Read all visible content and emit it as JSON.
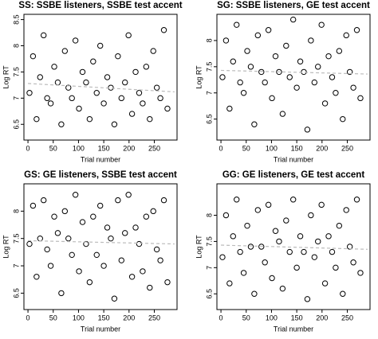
{
  "chart_data": [
    {
      "type": "scatter",
      "title": "SS: SSBE listeners, SSBE test accent",
      "x_label": "Trial number",
      "y_label": "Log RT",
      "xlim": [
        -8,
        295
      ],
      "ylim": [
        6.2,
        8.6
      ],
      "xticks": [
        0,
        50,
        100,
        150,
        200,
        250
      ],
      "yticks": [
        6.5,
        7,
        7.5,
        8,
        8.5
      ],
      "points": {
        "x": [
          3,
          10,
          17,
          24,
          31,
          38,
          45,
          52,
          59,
          66,
          73,
          80,
          87,
          94,
          101,
          108,
          115,
          122,
          129,
          136,
          143,
          150,
          157,
          164,
          171,
          178,
          185,
          192,
          199,
          206,
          213,
          220,
          227,
          234,
          241,
          248,
          255,
          262,
          269,
          276
        ],
        "y": [
          7.1,
          7.8,
          6.6,
          7.4,
          8.2,
          7.0,
          6.9,
          7.6,
          7.3,
          6.5,
          7.9,
          7.2,
          7.0,
          8.1,
          6.8,
          7.5,
          7.3,
          6.6,
          7.7,
          7.1,
          8.0,
          6.9,
          7.4,
          7.2,
          6.5,
          7.8,
          7.0,
          7.3,
          8.2,
          6.7,
          7.5,
          7.1,
          6.9,
          7.6,
          6.6,
          7.9,
          7.2,
          7.0,
          8.3,
          6.8
        ]
      },
      "trend": {
        "x": [
          0,
          290
        ],
        "y": [
          7.28,
          7.12
        ]
      }
    },
    {
      "type": "scatter",
      "title": "SG: SSBE listeners, GE test accent",
      "x_label": "Trial number",
      "y_label": "Log RT",
      "xlim": [
        -8,
        295
      ],
      "ylim": [
        6.1,
        8.5
      ],
      "xticks": [
        0,
        50,
        100,
        150,
        200,
        250
      ],
      "yticks": [
        6.5,
        7,
        7.5,
        8
      ],
      "points": {
        "x": [
          3,
          10,
          17,
          24,
          31,
          38,
          45,
          52,
          59,
          66,
          73,
          80,
          87,
          94,
          101,
          108,
          115,
          122,
          129,
          136,
          143,
          150,
          157,
          164,
          171,
          178,
          185,
          192,
          199,
          206,
          213,
          220,
          227,
          234,
          241,
          248,
          255,
          262,
          269,
          276
        ],
        "y": [
          7.3,
          8.0,
          6.7,
          7.6,
          8.3,
          7.2,
          7.0,
          7.8,
          7.5,
          6.4,
          8.1,
          7.4,
          7.2,
          8.2,
          6.9,
          7.7,
          7.4,
          6.6,
          7.9,
          7.3,
          8.4,
          7.1,
          7.6,
          7.4,
          6.3,
          8.0,
          7.2,
          7.5,
          8.3,
          6.8,
          7.7,
          7.3,
          7.0,
          7.8,
          6.5,
          8.1,
          7.4,
          7.1,
          8.2,
          6.9
        ]
      },
      "trend": {
        "x": [
          0,
          290
        ],
        "y": [
          7.43,
          7.36
        ]
      }
    },
    {
      "type": "scatter",
      "title": "GS: GE listeners, SSBE test accent",
      "x_label": "Trial number",
      "y_label": "Log RT",
      "xlim": [
        -8,
        295
      ],
      "ylim": [
        6.2,
        8.5
      ],
      "xticks": [
        0,
        50,
        100,
        150,
        200,
        250
      ],
      "yticks": [
        6.5,
        7,
        7.5,
        8
      ],
      "points": {
        "x": [
          3,
          10,
          17,
          24,
          31,
          38,
          45,
          52,
          59,
          66,
          73,
          80,
          87,
          94,
          101,
          108,
          115,
          122,
          129,
          136,
          143,
          150,
          157,
          164,
          171,
          178,
          185,
          192,
          199,
          206,
          213,
          220,
          227,
          234,
          241,
          248,
          255,
          262,
          269,
          276
        ],
        "y": [
          7.4,
          8.1,
          6.8,
          7.5,
          8.2,
          7.3,
          7.0,
          7.9,
          7.6,
          6.5,
          8.0,
          7.5,
          7.2,
          8.3,
          6.9,
          7.8,
          7.4,
          6.7,
          7.9,
          7.2,
          8.1,
          7.0,
          7.7,
          7.5,
          6.4,
          8.2,
          7.1,
          7.6,
          8.3,
          6.8,
          7.7,
          7.4,
          6.9,
          7.9,
          6.6,
          8.0,
          7.3,
          7.1,
          8.2,
          6.7
        ]
      },
      "trend": {
        "x": [
          0,
          290
        ],
        "y": [
          7.46,
          7.4
        ]
      }
    },
    {
      "type": "scatter",
      "title": "GG: GE listeners, GE test accent",
      "x_label": "Trial number",
      "y_label": "Log RT",
      "xlim": [
        -8,
        295
      ],
      "ylim": [
        6.2,
        8.6
      ],
      "xticks": [
        0,
        50,
        100,
        150,
        200,
        250
      ],
      "yticks": [
        6.5,
        7,
        7.5,
        8
      ],
      "points": {
        "x": [
          3,
          10,
          17,
          24,
          31,
          38,
          45,
          52,
          59,
          66,
          73,
          80,
          87,
          94,
          101,
          108,
          115,
          122,
          129,
          136,
          143,
          150,
          157,
          164,
          171,
          178,
          185,
          192,
          199,
          206,
          213,
          220,
          227,
          234,
          241,
          248,
          255,
          262,
          269,
          276
        ],
        "y": [
          7.2,
          8.0,
          6.7,
          7.6,
          8.3,
          7.3,
          6.9,
          7.8,
          7.4,
          6.5,
          8.1,
          7.4,
          7.1,
          8.2,
          6.8,
          7.7,
          7.5,
          6.6,
          7.9,
          7.3,
          8.3,
          7.0,
          7.6,
          7.3,
          6.4,
          8.0,
          7.2,
          7.5,
          8.2,
          6.7,
          7.6,
          7.3,
          7.0,
          7.8,
          6.5,
          8.1,
          7.4,
          7.1,
          8.3,
          6.9
        ]
      },
      "trend": {
        "x": [
          0,
          290
        ],
        "y": [
          7.43,
          7.35
        ]
      }
    }
  ]
}
